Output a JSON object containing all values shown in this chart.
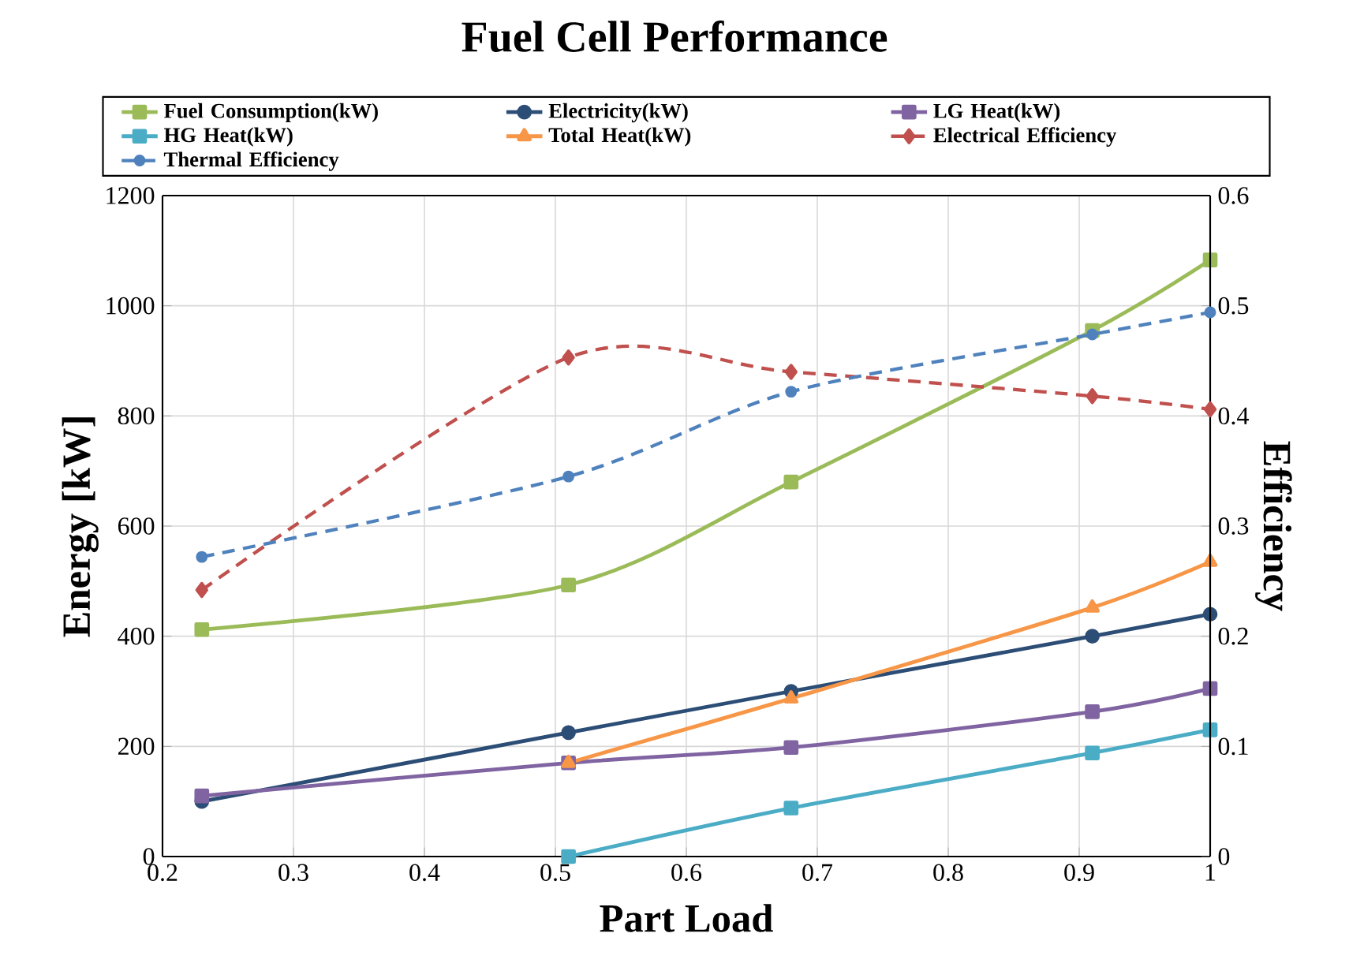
{
  "chart_data": {
    "type": "line",
    "title": "Fuel Cell Performance",
    "xlabel": "Part Load",
    "ylabel": "Energy [kW]",
    "y2label": "Efficiency",
    "x": [
      0.23,
      0.51,
      0.68,
      0.91,
      1.0
    ],
    "series": [
      {
        "name": "Fuel Consumption(kW)",
        "color": "#9bbb59",
        "marker": "square",
        "line_style": "solid",
        "values": [
          412,
          493,
          680,
          955,
          1083
        ]
      },
      {
        "name": "Electricity(kW)",
        "color": "#2c4d75",
        "marker": "circle",
        "line_style": "solid",
        "values": [
          100,
          225,
          300,
          400,
          440
        ]
      },
      {
        "name": "LG Heat(kW)",
        "color": "#8064a2",
        "marker": "square",
        "line_style": "solid",
        "values": [
          110,
          170,
          198,
          263,
          305
        ]
      },
      {
        "name": "HG Heat(kW)",
        "color": "#4bacc6",
        "marker": "square",
        "line_style": "solid",
        "values": [
          null,
          0,
          88,
          188,
          230
        ]
      },
      {
        "name": "Total Heat(kW)",
        "color": "#f79646",
        "marker": "triangle",
        "line_style": "solid",
        "values": [
          null,
          170,
          287,
          452,
          535
        ]
      },
      {
        "name": "Electrical Efficiency",
        "color": "#c0504d",
        "marker": "diamond",
        "line_style": "dashed",
        "axis": "y2",
        "values": [
          0.242,
          0.453,
          0.44,
          0.418,
          0.406
        ]
      },
      {
        "name": "Thermal Efficiency",
        "color": "#4f81bd",
        "marker": "circle",
        "line_style": "dashed",
        "axis": "y2",
        "values": [
          0.272,
          0.345,
          0.422,
          0.474,
          0.494
        ]
      }
    ],
    "xlim": [
      0.2,
      1
    ],
    "xticks": [
      0.2,
      0.3,
      0.4,
      0.5,
      0.6,
      0.7,
      0.8,
      0.9,
      1
    ],
    "ylim": [
      0,
      1200
    ],
    "yticks": [
      0,
      200,
      400,
      600,
      800,
      1000,
      1200
    ],
    "y2lim": [
      0,
      0.6
    ],
    "y2ticks": [
      0,
      0.1,
      0.2,
      0.3,
      0.4,
      0.5,
      0.6
    ],
    "grid": true,
    "legend": "top"
  }
}
